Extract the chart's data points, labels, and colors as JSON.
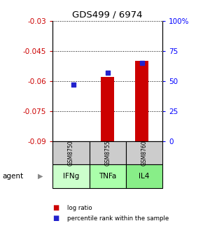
{
  "title": "GDS499 / 6974",
  "samples": [
    "GSM8750",
    "GSM8755",
    "GSM8760"
  ],
  "agents": [
    "IFNg",
    "TNFa",
    "IL4"
  ],
  "log_ratios": [
    -0.091,
    -0.058,
    -0.05
  ],
  "percentile_ranks": [
    47,
    57,
    65
  ],
  "left_ylim": [
    -0.09,
    -0.03
  ],
  "right_ylim": [
    0,
    100
  ],
  "left_yticks": [
    -0.09,
    -0.075,
    -0.06,
    -0.045,
    -0.03
  ],
  "right_yticks": [
    0,
    25,
    50,
    75,
    100
  ],
  "left_ytick_labels": [
    "-0.09",
    "-0.075",
    "-0.06",
    "-0.045",
    "-0.03"
  ],
  "right_ytick_labels": [
    "0",
    "25",
    "50",
    "75",
    "100%"
  ],
  "bar_color": "#cc0000",
  "dot_color": "#2222cc",
  "agent_colors": [
    "#ccffcc",
    "#aaffaa",
    "#88ee88"
  ],
  "sample_bg_color": "#cccccc",
  "legend_bar_label": "log ratio",
  "legend_dot_label": "percentile rank within the sample"
}
